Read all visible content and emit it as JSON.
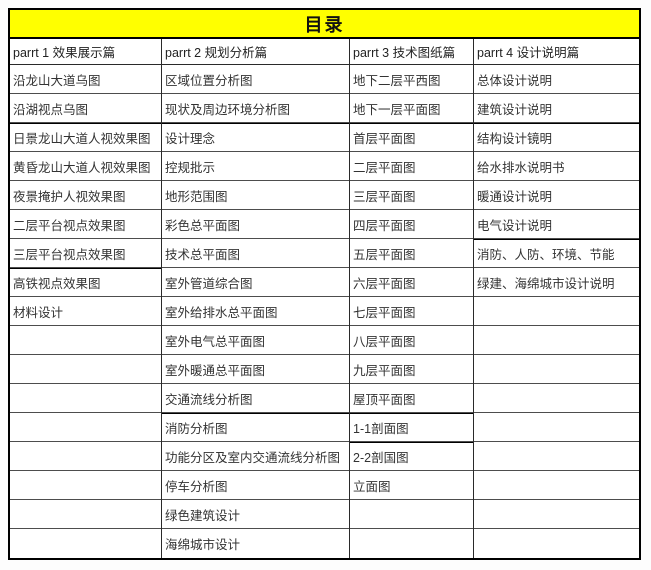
{
  "title": "目录",
  "colors": {
    "title_bg": "#ffff00",
    "border": "#000000",
    "text": "#333333"
  },
  "table": {
    "columns": [
      {
        "header": "parrt 1 效果展示篇",
        "thick": [
          2,
          7
        ],
        "cells": [
          "沿龙山大道乌图",
          "沿湖视点乌图",
          "日景龙山大道人视效果图",
          "黄昏龙山大道人视效果图",
          "夜景掩护人视效果图",
          "二层平台视点效果图",
          "三层平台视点效果图",
          "高铁视点效果图",
          "材料设计",
          "",
          "",
          "",
          "",
          "",
          "",
          "",
          ""
        ]
      },
      {
        "header": "parrt 2 规划分析篇",
        "thick": [
          2,
          12
        ],
        "cells": [
          "区域位置分析图",
          "现状及周边环境分析图",
          "设计理念",
          "控规批示",
          "地形范围图",
          "彩色总平面图",
          "技术总平面图",
          "室外管道综合图",
          "室外给排水总平面图",
          "室外电气总平面图",
          "室外暖通总平面图",
          "交通流线分析图",
          "消防分析图",
          "功能分区及室内交通流线分析图",
          "停车分析图",
          "绿色建筑设计",
          "海绵城市设计"
        ]
      },
      {
        "header": "parrt 3 技术图纸篇",
        "thick": [
          2,
          12,
          13
        ],
        "cells": [
          "地下二层平西图",
          "地下一层平面图",
          "首层平面图",
          "二层平面图",
          "三层平面图",
          "四层平面图",
          "五层平面图",
          "六层平面图",
          "七层平面图",
          "八层平面图",
          "九层平面图",
          "屋顶平面图",
          "1-1剖面图",
          "2-2剖国图",
          "立面图",
          "",
          ""
        ]
      },
      {
        "header": "parrt 4 设计说明篇",
        "thick": [
          2,
          6
        ],
        "cells": [
          "总体设计说明",
          "建筑设计说明",
          "结构设计镜明",
          "给水排水说明书",
          "暖通设计说明",
          "电气设计说明",
          "消防、人防、环境、节能",
          "绿建、海绵城市设计说明",
          "",
          "",
          "",
          "",
          "",
          "",
          "",
          "",
          ""
        ]
      }
    ]
  }
}
